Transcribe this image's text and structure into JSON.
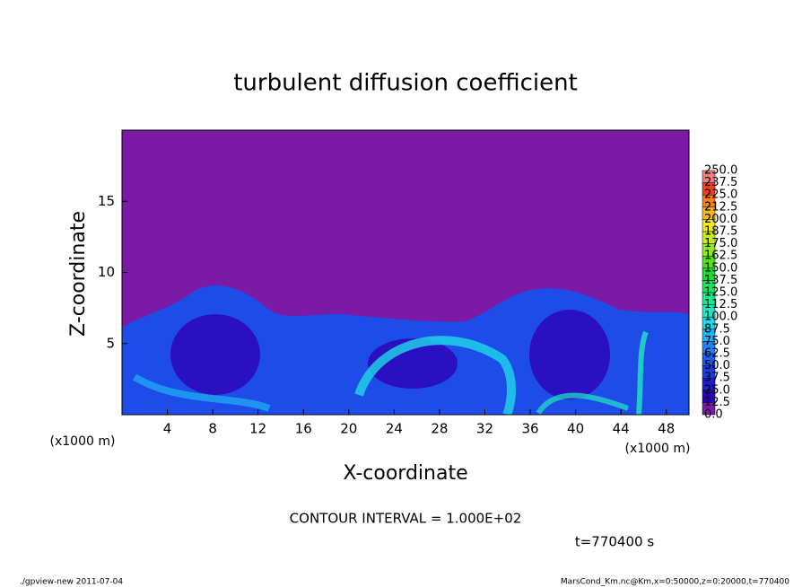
{
  "chart_data": {
    "type": "contour",
    "title": "turbulent diffusion coefficient",
    "x_label": "X-coordinate",
    "y_label": "Z-coordinate",
    "x_unit": "(x1000 m)",
    "y_unit": "(x1000 m)",
    "xlim": [
      0,
      50
    ],
    "ylim": [
      0,
      20
    ],
    "xticks": [
      4,
      8,
      12,
      16,
      20,
      24,
      28,
      32,
      36,
      40,
      44,
      48
    ],
    "yticks": [
      5,
      10,
      15
    ],
    "colorbar": {
      "ticks": [
        {
          "value": 0,
          "label": "0.0"
        },
        12.5,
        {
          "value": 25,
          "label": "25.0"
        },
        37.5,
        {
          "value": 50,
          "label": "50.0"
        },
        62.5,
        {
          "value": 75,
          "label": "75.0"
        },
        87.5,
        {
          "value": 100,
          "label": "100.0"
        },
        112.5,
        {
          "value": 125,
          "label": "125.0"
        },
        137.5,
        {
          "value": 150,
          "label": "150.0"
        },
        162.5,
        {
          "value": 175,
          "label": "175.0"
        },
        187.5,
        {
          "value": 200,
          "label": "200.0"
        },
        212.5,
        {
          "value": 225,
          "label": "225.0"
        },
        237.5,
        {
          "value": 250,
          "label": "250.0"
        }
      ],
      "colors": [
        "#7a1aa6",
        "#2a00b4",
        "#1f1fd0",
        "#1e3ce6",
        "#1e5cf2",
        "#1e84f8",
        "#1eb4f5",
        "#1ed8e8",
        "#1ee8c0",
        "#1ee890",
        "#1ee060",
        "#1ed83a",
        "#50e020",
        "#90e81e",
        "#c8ec1e",
        "#f0e81e",
        "#f8b81e",
        "#f8801e",
        "#f0401e",
        "#f08080"
      ]
    },
    "annotations": [
      "CONTOUR INTERVAL = 1.000E+02",
      "t=770400 s"
    ],
    "footer_left": "./gpview-new  2011-07-04",
    "footer_right": "MarsCond_Km.nc@Km,x=0:50000,z=0:20000,t=770400"
  }
}
